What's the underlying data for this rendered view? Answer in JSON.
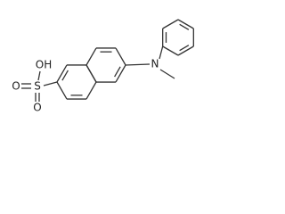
{
  "atoms": [
    "OH",
    "S",
    "O",
    "O",
    "N"
  ]
}
